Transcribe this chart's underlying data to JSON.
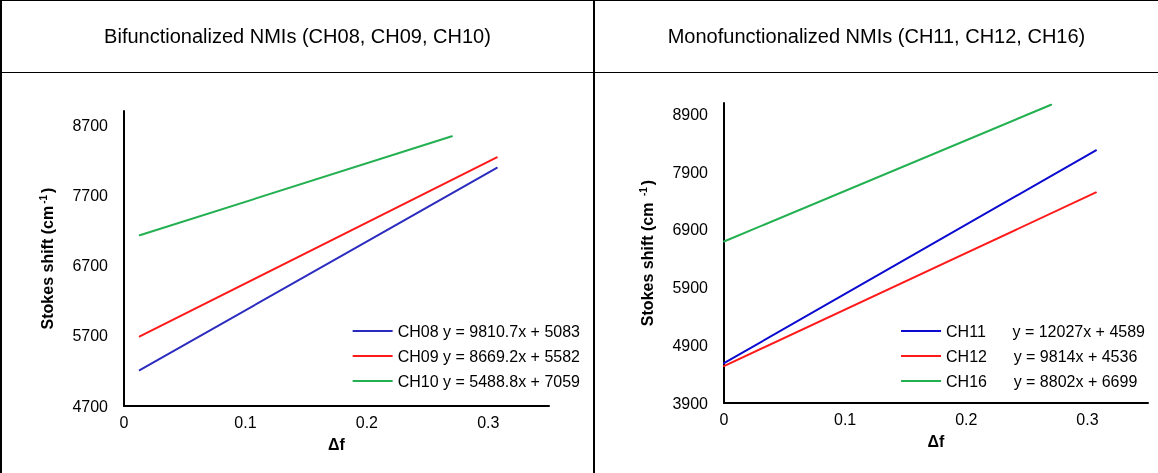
{
  "chart_data": [
    {
      "type": "line",
      "title": "Bifunctionalized NMIs (CH08, CH09, CH10)",
      "xlabel": "Δf",
      "ylabel": "Stokes shift (cm$^{-1}$)",
      "xlim": [
        0,
        0.35
      ],
      "xticks": [
        0,
        0.1,
        0.2,
        0.3
      ],
      "ylim": [
        4700,
        8900
      ],
      "yticks": [
        4700,
        5700,
        6700,
        7700,
        8700
      ],
      "grid": false,
      "legend": "bottom right",
      "marker": "none",
      "line_style": "solid",
      "series": [
        {
          "name": "CH08 y = 9810.7x + 5083",
          "color": "#2b2bc0",
          "x": [
            0.013,
            0.307
          ],
          "values": [
            5210,
            8090
          ]
        },
        {
          "name": "CH09 y = 8669.2x + 5582",
          "color": "#ff1a1a",
          "x": [
            0.013,
            0.307
          ],
          "values": [
            5690,
            8240
          ]
        },
        {
          "name": "CH10 y = 5488.8x + 7059",
          "color": "#22b050",
          "x": [
            0.013,
            0.27
          ],
          "values": [
            7130,
            8540
          ]
        }
      ]
    },
    {
      "type": "line",
      "title": "Monofunctionalized NMIs (CH11, CH12, CH16)",
      "xlabel": "Δf",
      "ylabel": "Stokes shift (cm $^{-1}$)",
      "xlim": [
        0,
        0.35
      ],
      "xticks": [
        0,
        0.1,
        0.2,
        0.3
      ],
      "ylim": [
        3900,
        9100
      ],
      "yticks": [
        3900,
        4900,
        5900,
        6900,
        7900,
        8900
      ],
      "grid": false,
      "legend": "bottom right",
      "marker": "none",
      "line_style": "solid",
      "series": [
        {
          "name": "CH11      y = 12027x + 4589",
          "color": "#0a0ad0",
          "x": [
            0,
            0.307
          ],
          "values": [
            4590,
            8280
          ]
        },
        {
          "name": "CH12      y = 9814x + 4536",
          "color": "#ff1a1a",
          "x": [
            0,
            0.307
          ],
          "values": [
            4540,
            7550
          ]
        },
        {
          "name": "CH16      y = 8802x + 6699",
          "color": "#22b050",
          "x": [
            0,
            0.27
          ],
          "values": [
            6700,
            9070
          ]
        }
      ]
    }
  ]
}
